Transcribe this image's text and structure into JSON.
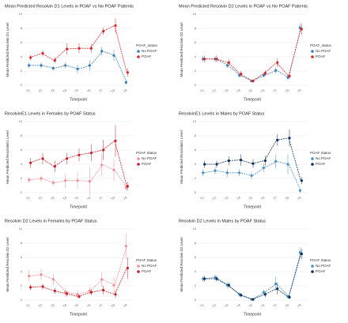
{
  "chart_data": [
    {
      "type": "line",
      "title": "Mean Predicted Resolvin D1 Levels in POAF vs No POAF Patients",
      "x_label": "Timepoint",
      "y_label": "Mean Predicted Resolvin D1 Level",
      "legend_title": "POAF_status",
      "categories": [
        "T1",
        "T2",
        "T3",
        "T4",
        "T5",
        "T6",
        "T7",
        "T8",
        "T9"
      ],
      "ylim": [
        0,
        10
      ],
      "yticks": [
        0,
        2,
        4,
        6,
        8,
        10
      ],
      "grid": true,
      "series": [
        {
          "name": "No POAF",
          "color": "#3b7fb6",
          "values": [
            2.8,
            2.8,
            2.4,
            2.8,
            2.3,
            2.8,
            4.8,
            4.2,
            0.4
          ],
          "errors": [
            0.4,
            0.4,
            0.3,
            0.4,
            0.6,
            0.7,
            0.6,
            0.8,
            0.3
          ]
        },
        {
          "name": "POAF",
          "color": "#d62728",
          "values": [
            3.9,
            4.5,
            3.5,
            5.1,
            5.2,
            5.2,
            7.6,
            8.4,
            1.8
          ],
          "errors": [
            0.4,
            0.4,
            0.4,
            0.8,
            0.7,
            0.6,
            0.5,
            1.0,
            0.6
          ]
        }
      ]
    },
    {
      "type": "line",
      "title": "Mean Predicted Resolvin D2 Levels in POAF vs No POAF Patients",
      "x_label": "Timepoint",
      "y_label": "Mean Predicted Resolvin D2 Level",
      "legend_title": "POAF_status",
      "categories": [
        "T1",
        "T2",
        "T3",
        "T4",
        "T5",
        "T6",
        "T7",
        "T8",
        "T9"
      ],
      "ylim": [
        0,
        10
      ],
      "yticks": [
        0,
        2,
        4,
        6,
        8,
        10
      ],
      "grid": true,
      "series": [
        {
          "name": "No POAF",
          "color": "#3b7fb6",
          "values": [
            3.7,
            3.7,
            2.8,
            1.4,
            0.6,
            1.4,
            2.1,
            1.1,
            8.1
          ],
          "errors": [
            0.4,
            0.4,
            0.4,
            0.3,
            0.2,
            0.3,
            0.4,
            0.3,
            0.6
          ]
        },
        {
          "name": "POAF",
          "color": "#d62728",
          "values": [
            3.7,
            3.7,
            3.2,
            1.6,
            0.6,
            1.7,
            3.2,
            1.3,
            7.9
          ],
          "errors": [
            0.5,
            0.5,
            0.5,
            0.4,
            0.2,
            0.4,
            0.6,
            0.4,
            0.8
          ]
        }
      ]
    },
    {
      "type": "line",
      "title": "ResolvinE1 Levels in Females by POAF Status",
      "x_label": "Timepoint",
      "y_label": "Mean Predicted ResolvinE1 Level",
      "legend_title": "POAF Status",
      "categories": [
        "T1",
        "T2",
        "T3",
        "T4",
        "T5",
        "T6",
        "T7",
        "T8",
        "T9"
      ],
      "ylim": [
        0,
        10
      ],
      "yticks": [
        0,
        2,
        4,
        6,
        8,
        10
      ],
      "grid": true,
      "series": [
        {
          "name": "No POAF",
          "color": "#f08f98",
          "values": [
            1.8,
            2.0,
            1.4,
            1.7,
            1.7,
            1.6,
            3.9,
            3.2,
            0.7
          ],
          "errors": [
            0.4,
            0.4,
            0.4,
            1.0,
            1.2,
            2.0,
            1.6,
            1.6,
            0.5
          ]
        },
        {
          "name": "POAF",
          "color": "#c81e28",
          "values": [
            4.2,
            4.8,
            3.7,
            4.8,
            5.3,
            5.6,
            6.0,
            7.3,
            0.9
          ],
          "errors": [
            0.7,
            0.8,
            0.8,
            0.8,
            0.9,
            1.2,
            1.4,
            2.2,
            0.6
          ]
        }
      ]
    },
    {
      "type": "line",
      "title": "ResolvinE1 Levels in Males by POAF Status",
      "x_label": "Timepoint",
      "y_label": "Mean Predicted ResolvinE1 Level",
      "legend_title": "POAF Status",
      "categories": [
        "T1",
        "T2",
        "T3",
        "T4",
        "T5",
        "T6",
        "T7",
        "T8",
        "T9"
      ],
      "ylim": [
        0,
        10
      ],
      "yticks": [
        0,
        2,
        4,
        6,
        8,
        10
      ],
      "grid": true,
      "series": [
        {
          "name": "No POAF",
          "color": "#4a90c8",
          "values": [
            2.8,
            3.1,
            2.8,
            2.8,
            2.4,
            3.5,
            4.4,
            4.0,
            0.3
          ],
          "errors": [
            0.5,
            0.5,
            0.6,
            0.5,
            0.5,
            0.6,
            1.0,
            1.4,
            0.3
          ]
        },
        {
          "name": "POAF",
          "color": "#0d2f5a",
          "values": [
            4.0,
            4.0,
            4.5,
            4.6,
            4.1,
            4.5,
            7.4,
            7.7,
            1.7
          ],
          "errors": [
            0.5,
            0.5,
            0.6,
            0.8,
            0.6,
            0.7,
            0.8,
            1.2,
            0.5
          ]
        }
      ]
    },
    {
      "type": "line",
      "title": "Resolvin D2 Levels in Females by POAF Status",
      "x_label": "Timepoint",
      "y_label": "Mean Predicted Resolvin D2 Level",
      "legend_title": "POAF Status",
      "categories": [
        "T1",
        "T2",
        "T3",
        "T4",
        "T5",
        "T6",
        "T7",
        "T8",
        "T9"
      ],
      "ylim": [
        0,
        10
      ],
      "yticks": [
        0,
        2,
        4,
        6,
        8,
        10
      ],
      "grid": true,
      "series": [
        {
          "name": "No POAF",
          "color": "#f08f98",
          "values": [
            3.4,
            3.6,
            2.9,
            1.1,
            0.8,
            1.3,
            2.9,
            2.1,
            7.6
          ],
          "errors": [
            0.8,
            0.8,
            0.8,
            0.6,
            0.6,
            0.6,
            1.0,
            1.2,
            1.8
          ]
        },
        {
          "name": "POAF",
          "color": "#c81e28",
          "values": [
            1.8,
            1.9,
            1.3,
            0.9,
            0.5,
            1.1,
            1.4,
            0.8,
            4.5
          ],
          "errors": [
            0.4,
            0.4,
            0.4,
            0.4,
            0.3,
            0.4,
            0.6,
            0.5,
            1.5
          ]
        }
      ]
    },
    {
      "type": "line",
      "title": "Resolvin D2 Levels in Males by POAF Status",
      "x_label": "Timepoint",
      "y_label": "Mean Predicted Resolvin D2 Level",
      "legend_title": "POAF Status",
      "categories": [
        "T1",
        "T2",
        "T3",
        "T4",
        "T5",
        "T6",
        "T7",
        "T8",
        "T9"
      ],
      "ylim": [
        0,
        10
      ],
      "yticks": [
        0,
        2,
        4,
        6,
        8,
        10
      ],
      "grid": true,
      "series": [
        {
          "name": "No POAF",
          "color": "#4a90c8",
          "values": [
            3.0,
            3.2,
            2.1,
            0.8,
            0.1,
            1.1,
            2.3,
            0.5,
            6.7
          ],
          "errors": [
            0.4,
            0.4,
            0.4,
            0.3,
            0.2,
            0.4,
            1.0,
            0.3,
            0.7
          ]
        },
        {
          "name": "POAF",
          "color": "#0d2f5a",
          "values": [
            3.0,
            3.0,
            2.1,
            0.7,
            0.1,
            0.8,
            1.6,
            0.4,
            6.5
          ],
          "errors": [
            0.4,
            0.4,
            0.4,
            0.3,
            0.2,
            0.4,
            0.8,
            0.3,
            0.7
          ]
        }
      ]
    }
  ]
}
